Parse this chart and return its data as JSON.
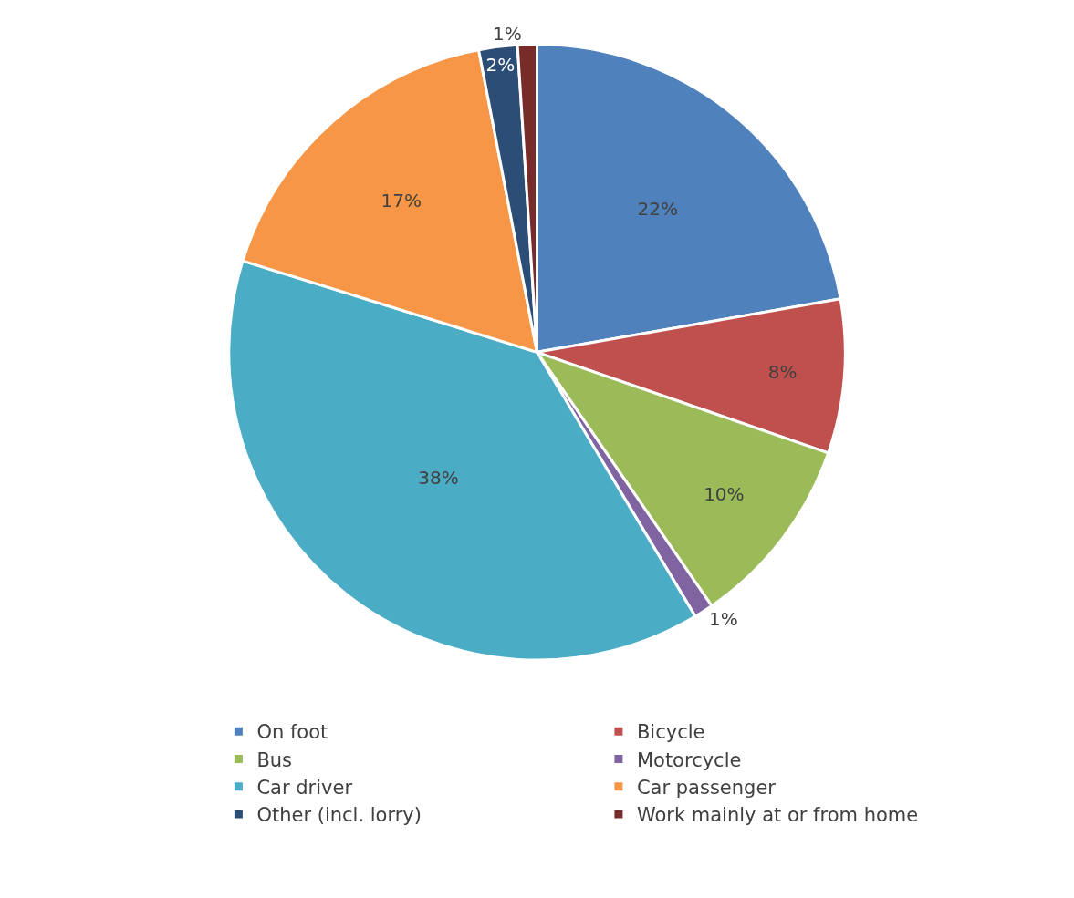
{
  "chart_data": {
    "type": "pie",
    "categories": [
      "On foot",
      "Bicycle",
      "Bus",
      "Motorcycle",
      "Car driver",
      "Car passenger",
      "Other (incl. lorry)",
      "Work mainly at or from home"
    ],
    "values": [
      22,
      8,
      10,
      1,
      38,
      17,
      2,
      1
    ],
    "value_labels": [
      "22%",
      "8%",
      "10%",
      "1%",
      "38%",
      "17%",
      "2%",
      "1%"
    ],
    "colors": [
      "#4f81bd",
      "#c0504d",
      "#9bbb59",
      "#8064a2",
      "#4bacc6",
      "#f79646",
      "#2c4d75",
      "#772c2a"
    ],
    "legend": "bottom"
  }
}
